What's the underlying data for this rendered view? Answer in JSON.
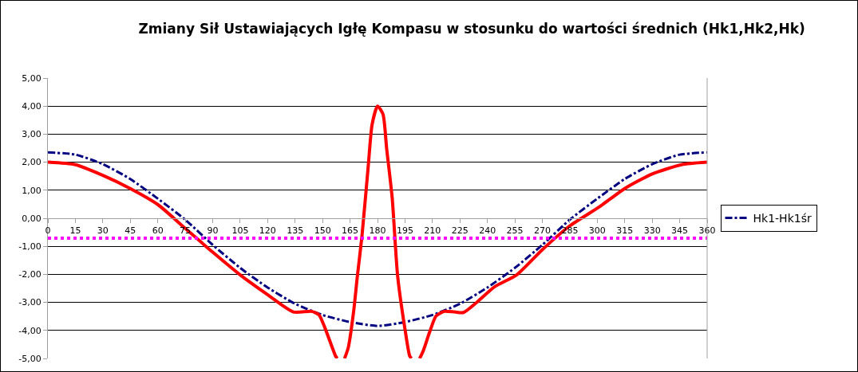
{
  "chart_data": {
    "type": "line",
    "title": "Zmiany Sił Ustawiających Igłę Kompasu w stosunku do wartości średnich (Hk1,Hk2,Hk)",
    "xlim": [
      0,
      360
    ],
    "xticks": [
      0,
      15,
      30,
      45,
      60,
      75,
      90,
      105,
      120,
      135,
      150,
      165,
      180,
      195,
      210,
      225,
      240,
      255,
      270,
      285,
      300,
      315,
      330,
      345,
      360
    ],
    "ylim": [
      -5,
      5
    ],
    "yticks": [
      {
        "value": -5,
        "label": "-5,00"
      },
      {
        "value": -4,
        "label": "-4,00"
      },
      {
        "value": -3,
        "label": "-3,00"
      },
      {
        "value": -2,
        "label": "-2,00"
      },
      {
        "value": -1,
        "label": "-1,00"
      },
      {
        "value": 0,
        "label": "0,00"
      },
      {
        "value": 1,
        "label": "1,00"
      },
      {
        "value": 2,
        "label": "2,00"
      },
      {
        "value": 3,
        "label": "3,00"
      },
      {
        "value": 4,
        "label": "4,00"
      },
      {
        "value": 5,
        "label": "5,00"
      }
    ],
    "grid": "y",
    "legend": "right",
    "marker": "none",
    "series": [
      {
        "name": "Hk1-Hk1śr",
        "color": "#000080",
        "line_style": "dashed",
        "x": [
          0,
          15,
          30,
          45,
          60,
          75,
          90,
          105,
          120,
          135,
          150,
          165,
          180,
          195,
          210,
          225,
          240,
          255,
          270,
          285,
          300,
          315,
          330,
          345,
          360
        ],
        "values": [
          2.35,
          2.27,
          1.93,
          1.4,
          0.7,
          -0.05,
          -0.95,
          -1.77,
          -2.47,
          -3.05,
          -3.45,
          -3.7,
          -3.84,
          -3.7,
          -3.45,
          -3.05,
          -2.47,
          -1.77,
          -0.95,
          -0.05,
          0.7,
          1.4,
          1.93,
          2.27,
          2.35
        ]
      },
      {
        "color": "#ff0000",
        "line_style": "solid",
        "x": [
          0,
          15,
          30,
          45,
          60,
          75,
          90,
          105,
          119,
          134,
          144,
          148,
          151,
          157,
          158,
          160,
          162,
          164,
          167,
          169,
          171.5,
          175,
          177,
          180,
          183,
          185,
          188,
          191,
          195,
          197.5,
          198.5,
          200,
          203,
          205,
          208.5,
          212,
          216.5,
          222,
          227,
          234,
          244,
          256,
          270,
          285,
          301,
          315,
          330,
          346,
          360
        ],
        "values": [
          2.0,
          1.91,
          1.53,
          1.06,
          0.49,
          -0.36,
          -1.21,
          -2.02,
          -2.68,
          -3.34,
          -3.32,
          -3.44,
          -3.86,
          -4.9,
          -5.0,
          null,
          -5.0,
          -4.62,
          -3.3,
          -2.06,
          -0.64,
          1.91,
          3.33,
          4.0,
          3.71,
          2.48,
          0.73,
          -2.07,
          -3.96,
          -4.9,
          -5.0,
          null,
          -5.0,
          -4.72,
          -4.05,
          -3.48,
          -3.32,
          -3.34,
          -3.36,
          -3.01,
          -2.44,
          -2.02,
          -1.12,
          -0.27,
          0.4,
          1.06,
          1.58,
          1.91,
          2.0
        ]
      }
    ],
    "ref_lines": [
      {
        "axis": "y",
        "value": -0.71,
        "color": "#ff00ff",
        "line_style": "dotted"
      }
    ]
  }
}
